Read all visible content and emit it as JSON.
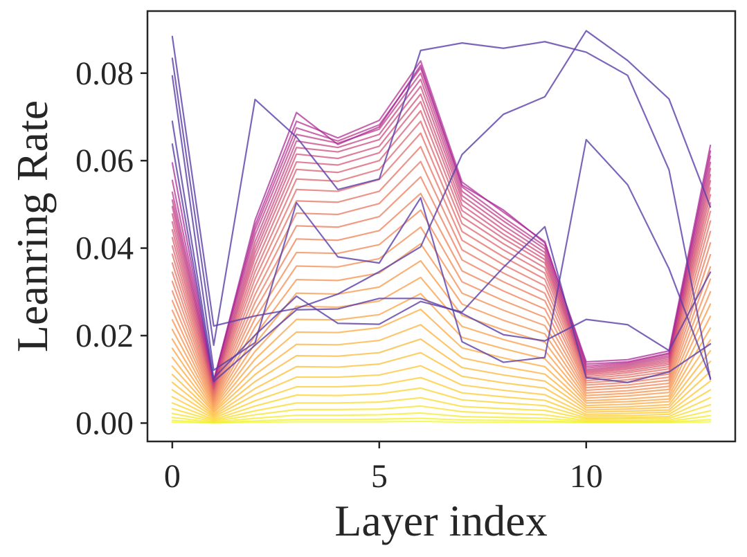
{
  "chart_data": {
    "type": "line",
    "title": "",
    "xlabel": "Layer index",
    "ylabel": "Leanring Rate",
    "xlim": [
      -0.6,
      13.6
    ],
    "ylim": [
      -0.0042,
      0.0942
    ],
    "xticks": [
      0,
      5,
      10
    ],
    "xtick_labels": [
      "0",
      "5",
      "10"
    ],
    "yticks": [
      0.0,
      0.02,
      0.04,
      0.06,
      0.08
    ],
    "ytick_labels": [
      "0.00",
      "0.02",
      "0.04",
      "0.06",
      "0.08"
    ],
    "grid": false,
    "legend": "none",
    "colormap": "plasma (reversed: yellow for low, purple for high)",
    "x": [
      0,
      1,
      2,
      3,
      4,
      5,
      6,
      7,
      8,
      9,
      10,
      11,
      12,
      13
    ],
    "series": [
      {
        "values": [
          0.0884,
          0.0222,
          0.0245,
          0.0262,
          0.0295,
          0.0346,
          0.0403,
          0.0614,
          0.0706,
          0.0746,
          0.0897,
          0.0829,
          0.0741,
          0.0494
        ]
      },
      {
        "values": [
          0.0834,
          0.0178,
          0.074,
          0.0654,
          0.0534,
          0.0558,
          0.0852,
          0.0869,
          0.0857,
          0.0872,
          0.0848,
          0.0795,
          0.0579,
          0.01
        ]
      },
      {
        "values": [
          0.0794,
          0.0121,
          0.0184,
          0.0504,
          0.038,
          0.0366,
          0.0515,
          0.0186,
          0.0139,
          0.015,
          0.0648,
          0.0545,
          0.0353,
          0.0103
        ]
      },
      {
        "values": [
          0.069,
          0.0103,
          0.0201,
          0.029,
          0.0228,
          0.0226,
          0.0278,
          0.0254,
          0.0356,
          0.0449,
          0.0104,
          0.0093,
          0.0117,
          0.0181
        ]
      },
      {
        "values": [
          0.0638,
          0.0095,
          0.0178,
          0.0259,
          0.0261,
          0.0285,
          0.0285,
          0.0251,
          0.0202,
          0.0188,
          0.0237,
          0.0225,
          0.0166,
          0.0345
        ]
      },
      {
        "values": [
          0.0595,
          0.0095,
          0.0464,
          0.071,
          0.0637,
          0.0677,
          0.0818,
          0.0544,
          0.0487,
          0.0412,
          0.014,
          0.0145,
          0.0165,
          0.0635
        ]
      },
      {
        "values": [
          0.0555,
          0.0098,
          0.0452,
          0.069,
          0.0652,
          0.0692,
          0.0828,
          0.0551,
          0.0482,
          0.0415,
          0.0135,
          0.014,
          0.016,
          0.0622
        ]
      },
      {
        "values": [
          0.0528,
          0.0096,
          0.0442,
          0.0675,
          0.0645,
          0.0682,
          0.0812,
          0.054,
          0.047,
          0.0405,
          0.013,
          0.0138,
          0.0158,
          0.061
        ]
      },
      {
        "values": [
          0.051,
          0.0093,
          0.043,
          0.066,
          0.064,
          0.0672,
          0.08,
          0.053,
          0.0462,
          0.0398,
          0.0126,
          0.0135,
          0.0154,
          0.0596
        ]
      },
      {
        "values": [
          0.0495,
          0.009,
          0.0415,
          0.0645,
          0.063,
          0.066,
          0.0786,
          0.052,
          0.0452,
          0.039,
          0.0122,
          0.0132,
          0.015,
          0.0582
        ]
      },
      {
        "values": [
          0.0478,
          0.0087,
          0.0402,
          0.063,
          0.062,
          0.0648,
          0.077,
          0.051,
          0.0442,
          0.0382,
          0.0119,
          0.0129,
          0.0146,
          0.0568
        ]
      },
      {
        "values": [
          0.046,
          0.0084,
          0.039,
          0.0615,
          0.0605,
          0.0633,
          0.0752,
          0.0498,
          0.0432,
          0.0374,
          0.0116,
          0.0126,
          0.0142,
          0.0554
        ]
      },
      {
        "values": [
          0.0442,
          0.0081,
          0.0378,
          0.0597,
          0.059,
          0.0618,
          0.0735,
          0.0486,
          0.0422,
          0.0366,
          0.0113,
          0.0123,
          0.0138,
          0.0538
        ]
      },
      {
        "values": [
          0.0424,
          0.0078,
          0.0362,
          0.058,
          0.0573,
          0.06,
          0.0714,
          0.0472,
          0.041,
          0.0355,
          0.011,
          0.0119,
          0.0134,
          0.0522
        ]
      },
      {
        "values": [
          0.0405,
          0.0075,
          0.0346,
          0.0558,
          0.0553,
          0.058,
          0.069,
          0.0456,
          0.0396,
          0.0343,
          0.0106,
          0.0115,
          0.0129,
          0.0504
        ]
      },
      {
        "values": [
          0.0386,
          0.0071,
          0.033,
          0.0534,
          0.053,
          0.0557,
          0.0663,
          0.0438,
          0.038,
          0.0329,
          0.0102,
          0.011,
          0.0124,
          0.0484
        ]
      },
      {
        "values": [
          0.0366,
          0.0067,
          0.0312,
          0.0508,
          0.0505,
          0.053,
          0.0632,
          0.0418,
          0.0362,
          0.0314,
          0.0097,
          0.0105,
          0.0118,
          0.0462
        ]
      },
      {
        "values": [
          0.0345,
          0.0063,
          0.0294,
          0.048,
          0.0477,
          0.0502,
          0.0598,
          0.0396,
          0.0343,
          0.0297,
          0.0092,
          0.0099,
          0.0112,
          0.0438
        ]
      },
      {
        "values": [
          0.0324,
          0.0059,
          0.0276,
          0.0451,
          0.0448,
          0.0472,
          0.0563,
          0.0373,
          0.0323,
          0.028,
          0.0087,
          0.0093,
          0.0105,
          0.0412
        ]
      },
      {
        "values": [
          0.0302,
          0.0055,
          0.0258,
          0.0421,
          0.0418,
          0.044,
          0.0525,
          0.0348,
          0.0302,
          0.0261,
          0.0081,
          0.0087,
          0.0098,
          0.0385
        ]
      },
      {
        "values": [
          0.028,
          0.0051,
          0.0239,
          0.039,
          0.0388,
          0.0408,
          0.0487,
          0.0323,
          0.028,
          0.0242,
          0.0075,
          0.0081,
          0.0091,
          0.0357
        ]
      },
      {
        "values": [
          0.0258,
          0.0047,
          0.022,
          0.0359,
          0.0357,
          0.0376,
          0.0448,
          0.0297,
          0.0258,
          0.0223,
          0.0069,
          0.0074,
          0.0084,
          0.0329
        ]
      },
      {
        "values": [
          0.0236,
          0.0043,
          0.0201,
          0.0328,
          0.0326,
          0.0343,
          0.041,
          0.0272,
          0.0235,
          0.0204,
          0.0063,
          0.0068,
          0.0077,
          0.03
        ]
      },
      {
        "values": [
          0.0214,
          0.0039,
          0.0182,
          0.0297,
          0.0295,
          0.0311,
          0.0371,
          0.0246,
          0.0213,
          0.0185,
          0.0057,
          0.0062,
          0.007,
          0.0272
        ]
      },
      {
        "values": [
          0.0192,
          0.0035,
          0.0164,
          0.0267,
          0.0265,
          0.0279,
          0.0333,
          0.0221,
          0.0191,
          0.0166,
          0.0051,
          0.0055,
          0.0062,
          0.0244
        ]
      },
      {
        "values": [
          0.0171,
          0.0031,
          0.0146,
          0.0237,
          0.0236,
          0.0248,
          0.0296,
          0.0196,
          0.017,
          0.0147,
          0.0046,
          0.0049,
          0.0055,
          0.0217
        ]
      },
      {
        "values": [
          0.015,
          0.0027,
          0.0128,
          0.0208,
          0.0207,
          0.0218,
          0.026,
          0.0172,
          0.0149,
          0.0129,
          0.004,
          0.0043,
          0.0049,
          0.019
        ]
      },
      {
        "values": [
          0.013,
          0.0024,
          0.0111,
          0.018,
          0.0179,
          0.0189,
          0.0225,
          0.0149,
          0.0129,
          0.0112,
          0.0035,
          0.0037,
          0.0042,
          0.0165
        ]
      },
      {
        "values": [
          0.0111,
          0.002,
          0.0095,
          0.0154,
          0.0153,
          0.0161,
          0.0192,
          0.0127,
          0.011,
          0.0096,
          0.003,
          0.0032,
          0.0036,
          0.0141
        ]
      },
      {
        "values": [
          0.0093,
          0.0017,
          0.0079,
          0.0129,
          0.0128,
          0.0135,
          0.0161,
          0.0107,
          0.0092,
          0.008,
          0.0025,
          0.0027,
          0.003,
          0.0118
        ]
      },
      {
        "values": [
          0.0076,
          0.0014,
          0.0065,
          0.0105,
          0.0105,
          0.011,
          0.0131,
          0.0087,
          0.0075,
          0.0065,
          0.002,
          0.0022,
          0.0025,
          0.0096
        ]
      },
      {
        "values": [
          0.006,
          0.0011,
          0.0051,
          0.0083,
          0.0083,
          0.0087,
          0.0104,
          0.0069,
          0.006,
          0.0052,
          0.0016,
          0.0017,
          0.002,
          0.0076
        ]
      },
      {
        "values": [
          0.0046,
          0.0008,
          0.0039,
          0.0064,
          0.0063,
          0.0067,
          0.008,
          0.0053,
          0.0046,
          0.004,
          0.0012,
          0.0013,
          0.0015,
          0.0058
        ]
      },
      {
        "values": [
          0.0033,
          0.0006,
          0.0028,
          0.0046,
          0.0046,
          0.0048,
          0.0058,
          0.0038,
          0.0033,
          0.0029,
          0.0009,
          0.001,
          0.0011,
          0.0042
        ]
      },
      {
        "values": [
          0.0022,
          0.0004,
          0.0019,
          0.0031,
          0.0031,
          0.0032,
          0.0039,
          0.0026,
          0.0022,
          0.0019,
          0.0006,
          0.0006,
          0.0007,
          0.0028
        ]
      },
      {
        "values": [
          0.0013,
          0.0002,
          0.0011,
          0.0018,
          0.0018,
          0.0019,
          0.0023,
          0.0015,
          0.0013,
          0.0011,
          0.0004,
          0.0004,
          0.0004,
          0.0017
        ]
      },
      {
        "values": [
          0.0006,
          0.0001,
          0.0005,
          0.0008,
          0.0008,
          0.0009,
          0.0011,
          0.0007,
          0.0006,
          0.0005,
          0.0002,
          0.0002,
          0.0002,
          0.0008
        ]
      },
      {
        "values": [
          0.0002,
          0.0,
          0.0002,
          0.0003,
          0.0003,
          0.0003,
          0.0004,
          0.0002,
          0.0002,
          0.0002,
          0.0001,
          0.0001,
          0.0001,
          0.0003
        ]
      }
    ]
  }
}
